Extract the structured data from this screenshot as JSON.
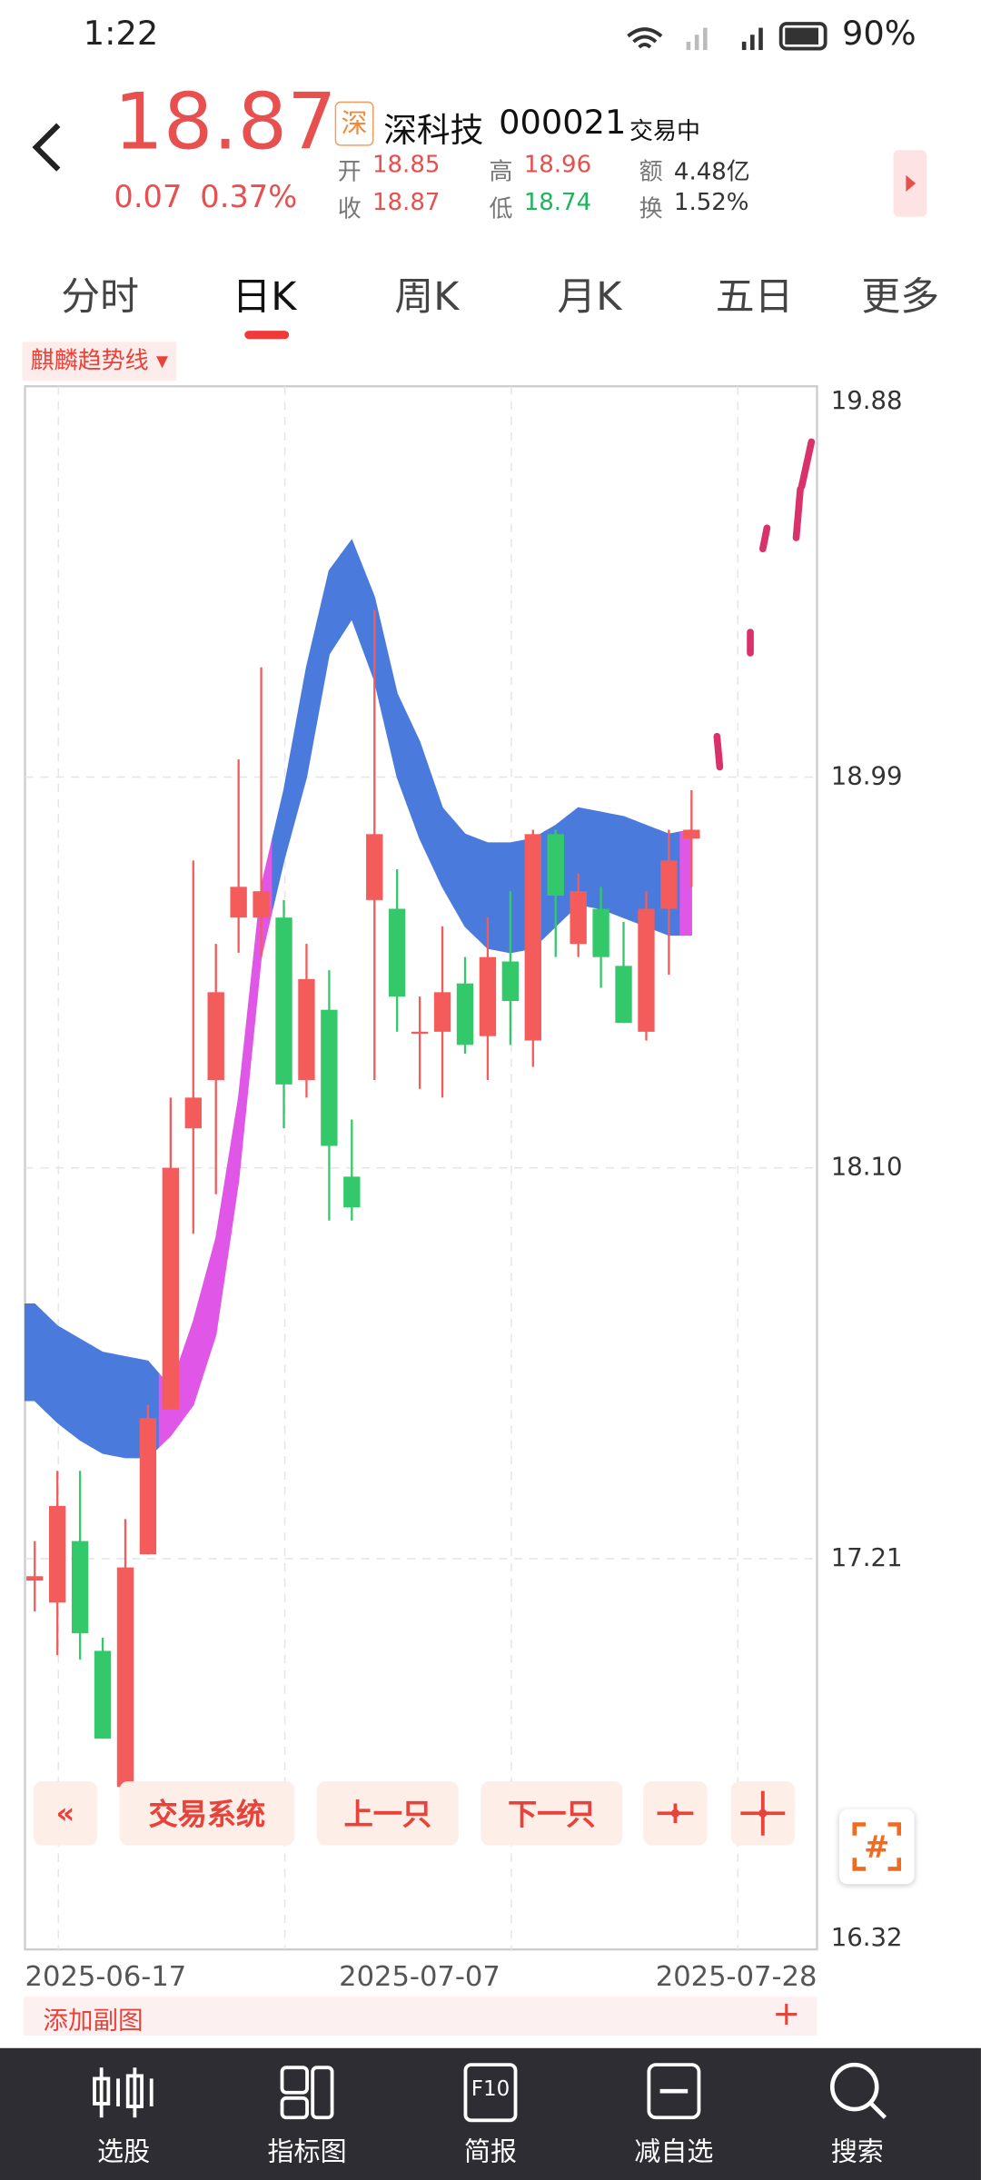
{
  "status_bar": {
    "time": "1:22",
    "battery": "90%"
  },
  "header": {
    "price": "18.87",
    "change": "0.07",
    "change_pct": "0.37%",
    "exchange": "深",
    "name": "深科技",
    "code": "000021",
    "status": "交易中",
    "stats": [
      {
        "label": "开",
        "value": "18.85"
      },
      {
        "label": "高",
        "value": "18.96"
      },
      {
        "label": "额",
        "value": "4.48亿"
      },
      {
        "label": "收",
        "value": "18.87"
      },
      {
        "label": "低",
        "value": "18.74"
      },
      {
        "label": "换",
        "value": "1.52%"
      }
    ]
  },
  "tabs": [
    "分时",
    "日K",
    "周K",
    "月K",
    "五日",
    "更多"
  ],
  "indicator": "麒麟趋势线",
  "chart_data": {
    "type": "candlestick",
    "ylim": [
      16.32,
      19.88
    ],
    "yticks": [
      16.32,
      17.21,
      {
        "value": 18.1,
        "label": "18.10"
      },
      18.99,
      19.88
    ],
    "xlabels": [
      "2025-06-17",
      "2025-07-07",
      "2025-07-28"
    ],
    "up_color": "#f45b5b",
    "down_color": "#33c96a",
    "open": [
      17.16,
      17.11,
      17.25,
      17.0,
      16.69,
      17.22,
      17.55,
      18.19,
      18.3,
      18.67,
      18.67,
      18.67,
      18.3,
      18.46,
      18.08,
      18.71,
      18.69,
      18.41,
      18.41,
      18.52,
      18.4,
      18.57,
      18.39,
      18.86,
      18.61,
      18.69,
      18.56,
      18.41,
      18.69,
      18.85
    ],
    "close": [
      17.17,
      17.33,
      17.04,
      16.8,
      17.19,
      17.53,
      18.1,
      18.26,
      18.5,
      18.74,
      18.73,
      18.29,
      18.53,
      18.15,
      18.01,
      18.86,
      18.49,
      18.41,
      18.5,
      18.38,
      18.58,
      18.48,
      18.86,
      18.72,
      18.73,
      18.58,
      18.43,
      18.69,
      18.8,
      18.87
    ],
    "high": [
      17.25,
      17.41,
      17.41,
      17.03,
      17.3,
      17.56,
      18.26,
      18.8,
      18.61,
      19.03,
      19.24,
      18.71,
      18.61,
      18.55,
      18.21,
      19.37,
      18.78,
      18.49,
      18.65,
      18.58,
      18.67,
      18.73,
      18.87,
      18.87,
      18.77,
      18.74,
      18.66,
      18.73,
      18.87,
      18.96
    ],
    "low": [
      17.09,
      16.99,
      16.98,
      16.8,
      16.61,
      17.22,
      17.55,
      17.95,
      18.04,
      18.59,
      18.58,
      18.19,
      18.26,
      17.98,
      17.98,
      18.3,
      18.41,
      18.28,
      18.26,
      18.36,
      18.3,
      18.38,
      18.33,
      18.58,
      18.58,
      18.51,
      18.43,
      18.39,
      18.54,
      18.74
    ],
    "band": {
      "upper": [
        17.79,
        17.74,
        17.71,
        17.68,
        17.67,
        17.66,
        17.6,
        17.75,
        17.94,
        18.26,
        18.74,
        18.96,
        19.24,
        19.46,
        19.53,
        19.4,
        19.18,
        19.07,
        18.92,
        18.86,
        18.84,
        18.84,
        18.85,
        18.88,
        18.92,
        18.91,
        18.9,
        18.88,
        18.86,
        18.87
      ],
      "lower": [
        17.57,
        17.52,
        17.48,
        17.45,
        17.44,
        17.44,
        17.49,
        17.56,
        17.72,
        18.07,
        18.58,
        18.8,
        18.99,
        19.27,
        19.35,
        19.21,
        18.99,
        18.85,
        18.74,
        18.65,
        18.6,
        18.59,
        18.6,
        18.65,
        18.7,
        18.69,
        18.67,
        18.65,
        18.63,
        18.63
      ],
      "colors": [
        "#4a7bdc",
        "#4a7bdc",
        "#4a7bdc",
        "#4a7bdc",
        "#4a7bdc",
        "#4a7bdc",
        "#e056e6",
        "#e056e6",
        "#e056e6",
        "#e056e6",
        "#e056e6",
        "#4a7bdc",
        "#4a7bdc",
        "#4a7bdc",
        "#4a7bdc",
        "#4a7bdc",
        "#4a7bdc",
        "#4a7bdc",
        "#4a7bdc",
        "#4a7bdc",
        "#4a7bdc",
        "#4a7bdc",
        "#4a7bdc",
        "#4a7bdc",
        "#4a7bdc",
        "#4a7bdc",
        "#4a7bdc",
        "#4a7bdc",
        "#4a7bdc",
        "#e056e6"
      ]
    }
  },
  "chart_buttons": [
    "交易系统",
    "上一只",
    "下一只"
  ],
  "add_subchart": "添加副图",
  "nav": [
    {
      "label": "选股"
    },
    {
      "label": "指标图"
    },
    {
      "label": "简报",
      "icon": "F10"
    },
    {
      "label": "减自选"
    },
    {
      "label": "搜索"
    }
  ]
}
